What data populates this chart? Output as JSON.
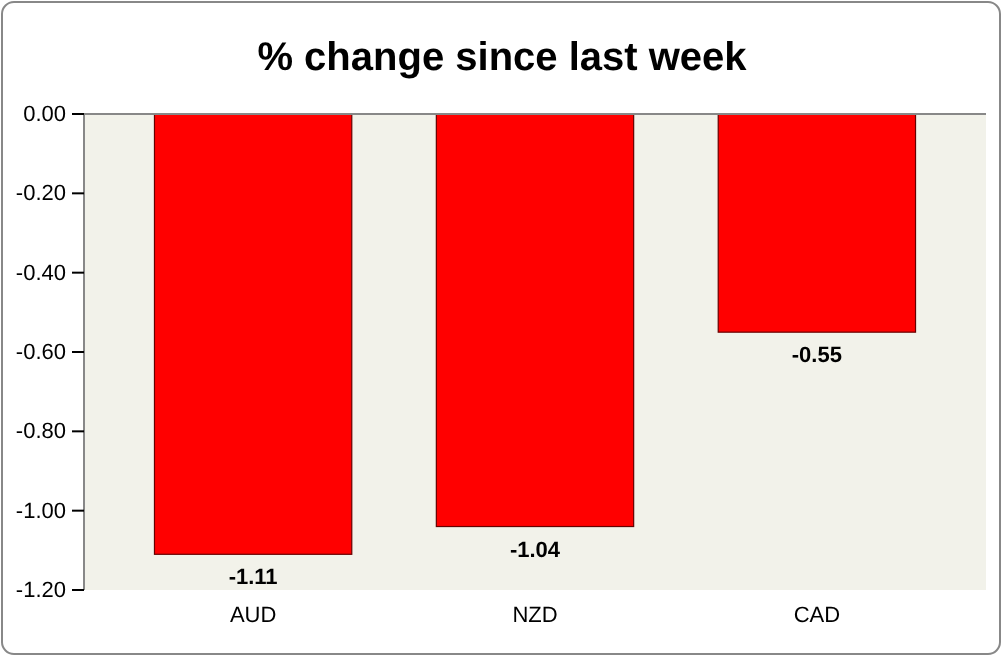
{
  "chart_data": {
    "type": "bar",
    "title": "% change since last week",
    "categories": [
      "AUD",
      "NZD",
      "CAD"
    ],
    "values": [
      -1.11,
      -1.04,
      -0.55
    ],
    "color": "#ff0000",
    "ylim": [
      -1.2,
      0
    ],
    "yticks": [
      {
        "value": 0,
        "label": "0.00"
      },
      {
        "value": -0.2,
        "label": "-0.20"
      },
      {
        "value": -0.4,
        "label": "-0.40"
      },
      {
        "value": -0.6,
        "label": "-0.60"
      },
      {
        "value": -0.8,
        "label": "-0.80"
      },
      {
        "value": -1.0,
        "label": "-1.00"
      },
      {
        "value": -1.2,
        "label": "-1.20"
      }
    ],
    "data_labels": true
  }
}
